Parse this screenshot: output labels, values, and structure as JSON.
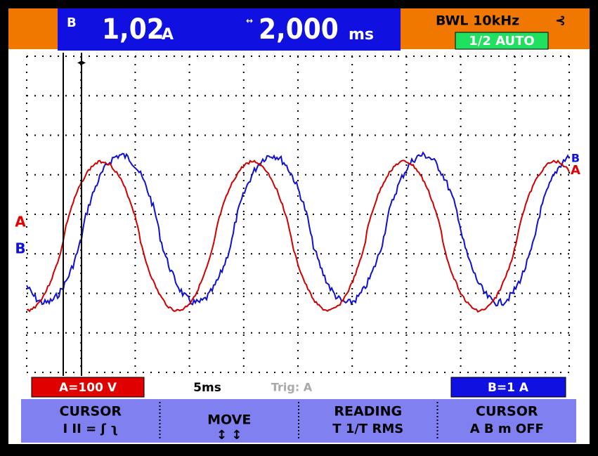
{
  "header": {
    "channel": "B",
    "reading": "1,02",
    "reading_unit": "A",
    "time": "2,000",
    "time_unit": "ms",
    "bandwidth": "BWL 10kHz",
    "mode": "1/2 AUTO"
  },
  "markers": {
    "a": "A",
    "b": "B"
  },
  "status": {
    "scale_a": "A=100 V",
    "timebase": "5ms",
    "trigger": "Trig: A",
    "scale_b": "B=1 A"
  },
  "menu": [
    {
      "label": "CURSOR",
      "options": "I II = ʃ ʅ"
    },
    {
      "label": "MOVE",
      "options": "↕ ↕"
    },
    {
      "label": "READING",
      "options": "T 1/T RMS"
    },
    {
      "label": "CURSOR",
      "options": "A B m OFF"
    }
  ]
}
